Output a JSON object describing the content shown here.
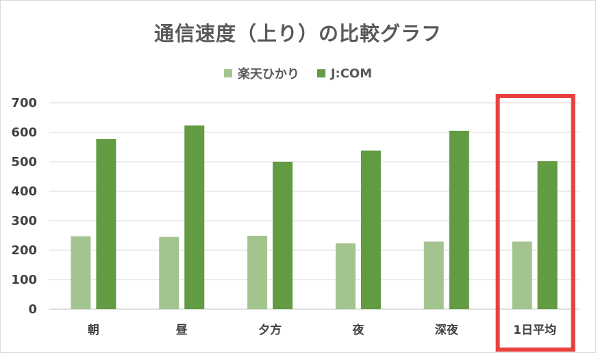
{
  "chart_data": {
    "type": "bar",
    "title": "通信速度（上り）の比較グラフ",
    "categories": [
      "朝",
      "昼",
      "夕方",
      "夜",
      "深夜",
      "1日平均"
    ],
    "series": [
      {
        "name": "楽天ひかり",
        "color": "#a3c48f",
        "values": [
          247,
          245,
          249,
          223,
          229,
          229
        ]
      },
      {
        "name": "J:COM",
        "color": "#629b41",
        "values": [
          577,
          623,
          500,
          538,
          605,
          502
        ]
      }
    ],
    "ylim": [
      0,
      700
    ],
    "yticks": [
      0,
      100,
      200,
      300,
      400,
      500,
      600,
      700
    ],
    "grid": true,
    "legend_position": "top",
    "highlight": {
      "category": "1日平均",
      "color": "#e8413d"
    }
  }
}
